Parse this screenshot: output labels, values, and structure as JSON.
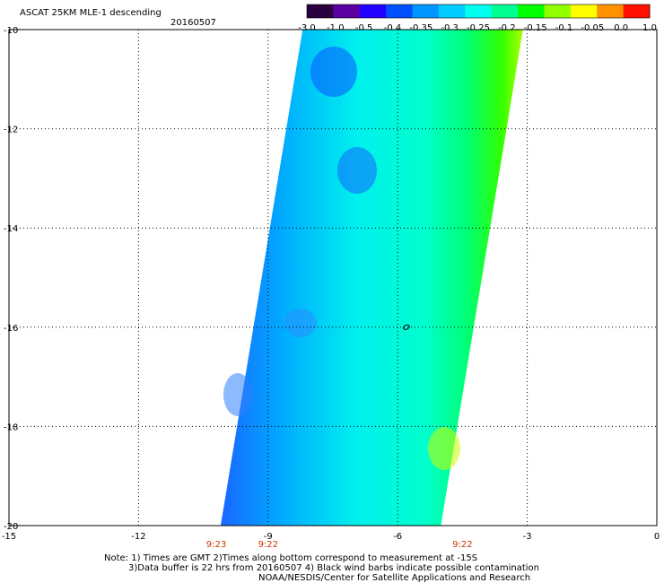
{
  "header": {
    "title": "ASCAT 25KM MLE-1 descending",
    "date": "20160507"
  },
  "colorbar": {
    "labels": [
      "-3.0",
      "-1.0",
      "-0.5",
      "-0.4",
      "-0.35",
      "-0.3",
      "-0.25",
      "-0.2",
      "-0.15",
      "-0.1",
      "-0.05",
      "0.0",
      "1.0"
    ],
    "colors": [
      "#2a0040",
      "#5a00a0",
      "#2200ff",
      "#0050ff",
      "#0096ff",
      "#00ccff",
      "#00ffee",
      "#00ff90",
      "#00ff00",
      "#90ff00",
      "#ffff00",
      "#ff9000",
      "#ff1000"
    ]
  },
  "map": {
    "lon_range": [
      -15,
      0
    ],
    "lat_range": [
      -20,
      -10
    ],
    "x_ticks": [
      "-15",
      "-12",
      "-9",
      "-6",
      "-3",
      "0"
    ],
    "y_ticks": [
      "-10",
      "-12",
      "-14",
      "-16",
      "-18",
      "-20"
    ],
    "times": [
      {
        "label": "9:23",
        "lon": -10.2
      },
      {
        "label": "9:22",
        "lon": -9.0
      },
      {
        "label": "9:22",
        "lon": -4.5
      }
    ],
    "swath_polygon": [
      [
        -8.2,
        -10.0
      ],
      [
        -3.1,
        -10.0
      ],
      [
        -5.0,
        -20.0
      ],
      [
        -10.1,
        -20.0
      ]
    ],
    "marker": {
      "lon": -5.8,
      "lat": -16.0
    }
  },
  "notes": {
    "line1": "Note: 1) Times are GMT 2)Times along bottom correspond to measurement at -15S",
    "line2": "3)Data buffer is 22 hrs from 20160507 4) Black wind barbs indicate possible contamination",
    "line3": "NOAA/NESDIS/Center for Satellite Applications and Research"
  }
}
